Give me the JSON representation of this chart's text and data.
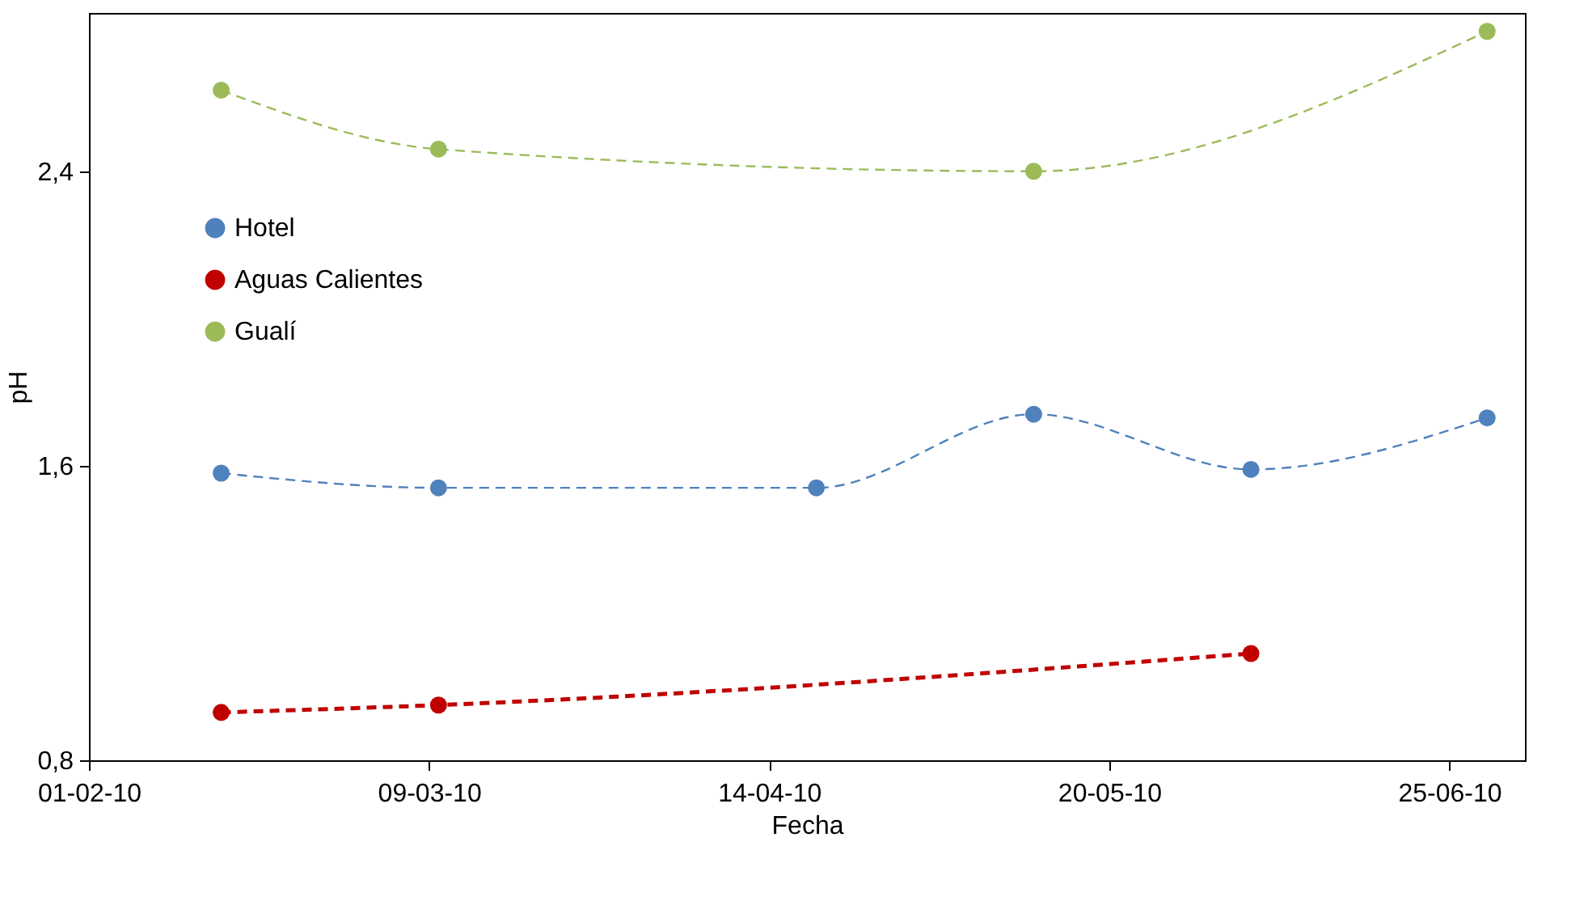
{
  "chart_data": {
    "type": "line",
    "xlabel": "Fecha",
    "ylabel": "pH",
    "xlim": [
      "2010-02-01",
      "2010-07-03"
    ],
    "xticks": [
      {
        "value": "2010-02-01",
        "label": "01-02-10"
      },
      {
        "value": "2010-03-09",
        "label": "09-03-10"
      },
      {
        "value": "2010-04-14",
        "label": "14-04-10"
      },
      {
        "value": "2010-05-20",
        "label": "20-05-10"
      },
      {
        "value": "2010-06-25",
        "label": "25-06-10"
      }
    ],
    "ylim": [
      0.8,
      2.83
    ],
    "yticks": [
      {
        "value": 0.8,
        "label": "0,8"
      },
      {
        "value": 1.6,
        "label": "1,6"
      },
      {
        "value": 2.4,
        "label": "2,4"
      }
    ],
    "grid": false,
    "legend": "left",
    "marker": "circle",
    "series": [
      {
        "name": "Hotel",
        "color": "#4f81bd",
        "line_style": "dashed",
        "x": [
          "2010-02-15",
          "2010-03-10",
          "2010-04-19",
          "2010-05-12",
          "2010-06-04",
          "2010-06-29"
        ],
        "values": [
          1.58,
          1.54,
          1.54,
          1.74,
          1.59,
          1.73
        ]
      },
      {
        "name": "Aguas Calientes",
        "color": "#c00000",
        "line_style": "dashed",
        "x": [
          "2010-02-15",
          "2010-03-10",
          "2010-06-04"
        ],
        "values": [
          0.93,
          0.95,
          1.09
        ]
      },
      {
        "name": "Gualí",
        "color": "#9bbb59",
        "line_style": "dashed",
        "x": [
          "2010-02-15",
          "2010-03-10",
          "2010-05-12",
          "2010-06-29"
        ],
        "values": [
          2.62,
          2.46,
          2.4,
          2.78
        ]
      }
    ]
  }
}
